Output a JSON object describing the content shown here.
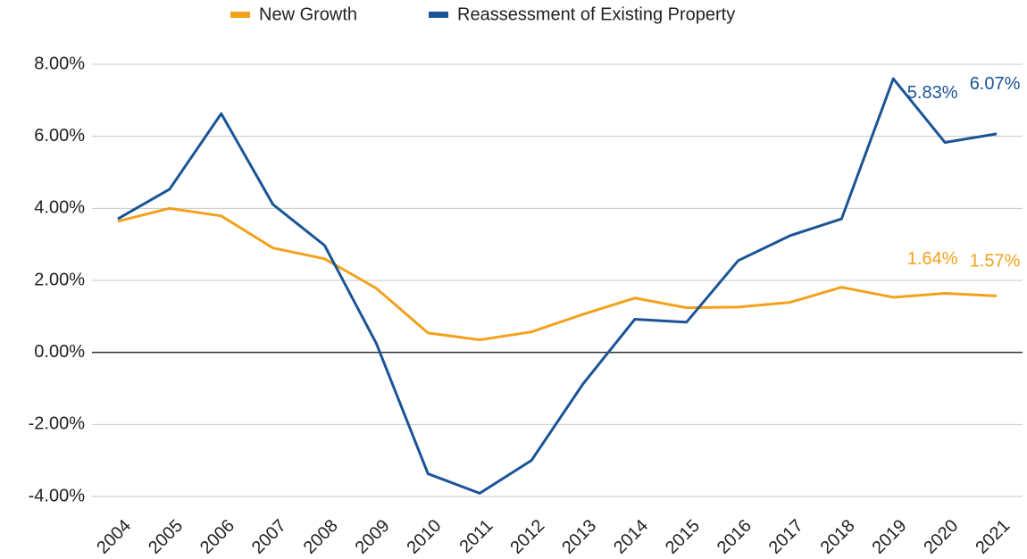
{
  "chart_data": {
    "type": "line",
    "categories": [
      "2004",
      "2005",
      "2006",
      "2007",
      "2008",
      "2009",
      "2010",
      "2011",
      "2012",
      "2013",
      "2014",
      "2015",
      "2016",
      "2017",
      "2018",
      "2019",
      "2020",
      "2021"
    ],
    "series": [
      {
        "name": "New Growth",
        "color": "#f4a11c",
        "values": [
          3.64,
          4.0,
          3.79,
          2.9,
          2.6,
          1.78,
          0.54,
          0.35,
          0.57,
          1.06,
          1.51,
          1.24,
          1.26,
          1.39,
          1.81,
          1.53,
          1.64,
          1.57
        ],
        "value_labels": [
          null,
          null,
          null,
          null,
          null,
          null,
          null,
          null,
          null,
          null,
          null,
          null,
          null,
          null,
          null,
          null,
          "1.64%",
          "1.57%"
        ]
      },
      {
        "name": "Reassessment of Existing Property",
        "color": "#1a5496",
        "values": [
          3.71,
          4.53,
          6.63,
          4.11,
          2.97,
          0.25,
          -3.37,
          -3.91,
          -3.0,
          -0.87,
          0.92,
          0.84,
          2.55,
          3.24,
          3.71,
          7.6,
          5.83,
          6.07
        ],
        "value_labels": [
          null,
          null,
          null,
          null,
          null,
          null,
          null,
          null,
          null,
          null,
          null,
          null,
          null,
          null,
          null,
          null,
          "5.83%",
          "6.07%"
        ]
      }
    ],
    "ylim": [
      -4,
      8
    ],
    "yticks": [
      {
        "value": -4,
        "label": "-4.00%"
      },
      {
        "value": -2,
        "label": "-2.00%"
      },
      {
        "value": 0,
        "label": "0.00%"
      },
      {
        "value": 2,
        "label": "2.00%"
      },
      {
        "value": 4,
        "label": "4.00%"
      },
      {
        "value": 6,
        "label": "6.00%"
      },
      {
        "value": 8,
        "label": "8.00%"
      }
    ],
    "grid": true,
    "legend": "top"
  }
}
